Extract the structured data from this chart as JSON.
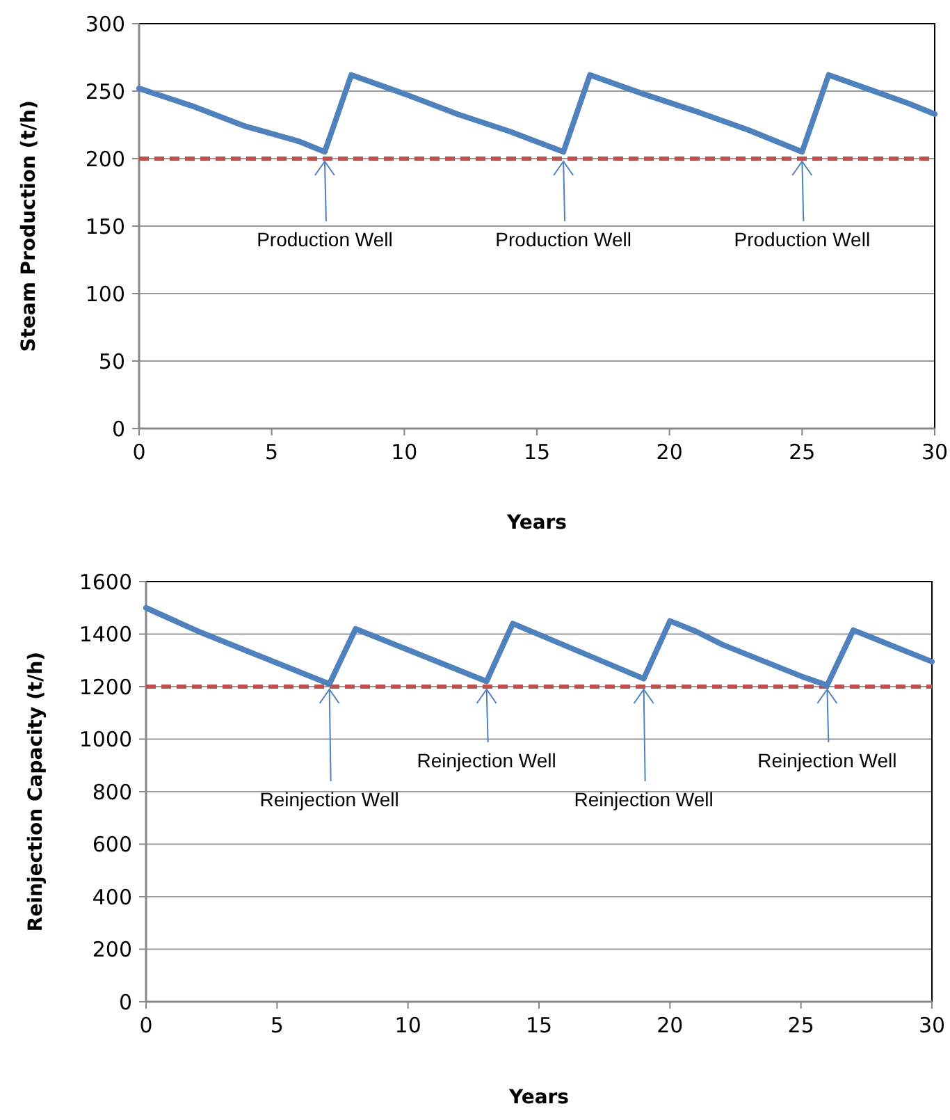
{
  "chart_data": [
    {
      "type": "line",
      "ylabel": "Steam Production  (t/h)",
      "xlabel": "Years",
      "xlim": [
        0,
        30
      ],
      "xticks": [
        0,
        5,
        10,
        15,
        20,
        25,
        30
      ],
      "ylim": [
        0,
        300
      ],
      "yticks": [
        0,
        50,
        100,
        150,
        200,
        250,
        300
      ],
      "grid": "y",
      "marker": "none",
      "series": [
        {
          "color": "#4f81bd",
          "x": [
            0,
            2,
            4,
            6,
            7,
            8,
            10,
            12,
            14,
            16,
            17,
            19,
            21,
            23,
            25,
            26,
            28,
            29,
            30
          ],
          "values": [
            252,
            239,
            224,
            213,
            205,
            262,
            248,
            233,
            220,
            205,
            262,
            248,
            235,
            221,
            205,
            262,
            248,
            241,
            233
          ]
        }
      ],
      "ref_lines": [
        {
          "axis": "y",
          "value": 200,
          "color": "#c0504d",
          "line_style": "dashed"
        }
      ],
      "annotations": [
        {
          "text": "Production Well",
          "x": 7,
          "y": 200
        },
        {
          "text": "Production Well",
          "x": 16,
          "y": 200
        },
        {
          "text": "Production Well",
          "x": 25,
          "y": 200
        }
      ]
    },
    {
      "type": "line",
      "ylabel": "Reinjection Capacity (t/h)",
      "xlabel": "Years",
      "xlim": [
        0,
        30
      ],
      "xticks": [
        0,
        5,
        10,
        15,
        20,
        25,
        30
      ],
      "ylim": [
        0,
        1600
      ],
      "yticks": [
        0,
        200,
        400,
        600,
        800,
        1000,
        1200,
        1400,
        1600
      ],
      "grid": "y",
      "marker": "none",
      "series": [
        {
          "color": "#4f81bd",
          "x": [
            0,
            2,
            7,
            8,
            13,
            14,
            19,
            20,
            21,
            22,
            25,
            26,
            27,
            30
          ],
          "values": [
            1500,
            1410,
            1210,
            1420,
            1220,
            1440,
            1230,
            1450,
            1410,
            1360,
            1240,
            1205,
            1415,
            1295
          ]
        }
      ],
      "ref_lines": [
        {
          "axis": "y",
          "value": 1200,
          "color": "#c0504d",
          "line_style": "dashed"
        }
      ],
      "annotations": [
        {
          "text": "Reinjection Well",
          "x": 7,
          "y": 1200
        },
        {
          "text": "Reinjection Well",
          "x": 13,
          "y": 1200
        },
        {
          "text": "Reinjection Well",
          "x": 19,
          "y": 1200
        },
        {
          "text": "Reinjection Well",
          "x": 26,
          "y": 1200
        }
      ]
    }
  ]
}
